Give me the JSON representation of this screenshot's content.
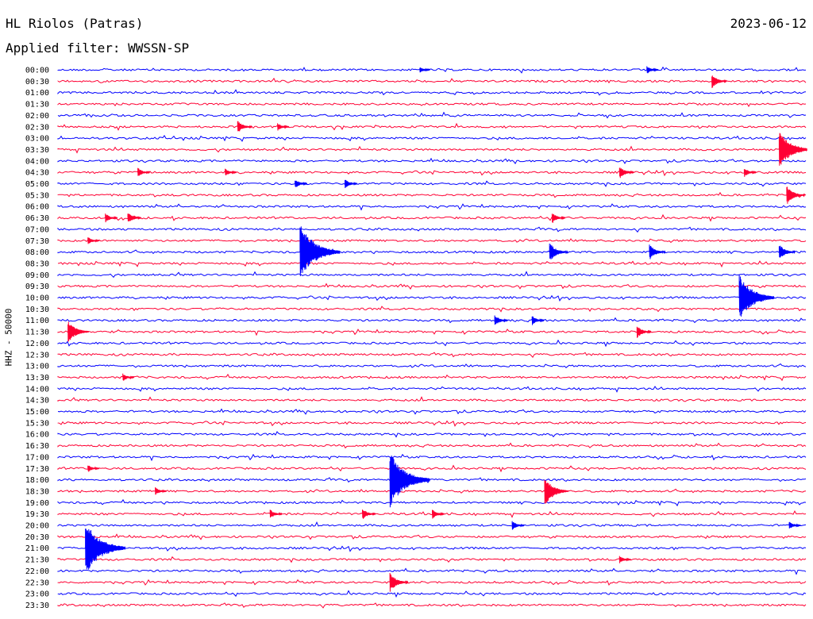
{
  "header": {
    "station": "HL Riolos (Patras)",
    "date": "2023-06-12",
    "filter": "Applied filter: WWSSN-SP",
    "channel": "HHZ - 50000"
  },
  "chart_data": {
    "type": "line",
    "title": "HL Riolos (Patras)",
    "subtitle": "Applied filter: WWSSN-SP",
    "ylabel": "HHZ - 50000",
    "xlabel": "",
    "grid": false,
    "series_colors": [
      "#0000ff",
      "#ff0033"
    ],
    "rows": [
      "00:00",
      "00:30",
      "01:00",
      "01:30",
      "02:00",
      "02:30",
      "03:00",
      "03:30",
      "04:00",
      "04:30",
      "05:00",
      "05:30",
      "06:00",
      "06:30",
      "07:00",
      "07:30",
      "08:00",
      "08:30",
      "09:00",
      "09:30",
      "10:00",
      "10:30",
      "11:00",
      "11:30",
      "12:00",
      "12:30",
      "13:00",
      "13:30",
      "14:00",
      "14:30",
      "15:00",
      "15:30",
      "16:00",
      "16:30",
      "17:00",
      "17:30",
      "18:00",
      "18:30",
      "19:00",
      "19:30",
      "20:00",
      "20:30",
      "21:00",
      "21:30",
      "22:00",
      "22:30",
      "23:00",
      "23:30"
    ],
    "events": [
      {
        "row": "00:00",
        "minute": 14.5,
        "amp": 0.4
      },
      {
        "row": "00:00",
        "minute": 23.6,
        "amp": 0.5
      },
      {
        "row": "00:30",
        "minute": 26.2,
        "amp": 0.9
      },
      {
        "row": "02:30",
        "minute": 7.2,
        "amp": 0.8
      },
      {
        "row": "02:30",
        "minute": 8.8,
        "amp": 0.5
      },
      {
        "row": "03:30",
        "minute": 28.9,
        "amp": 2.5
      },
      {
        "row": "04:30",
        "minute": 3.2,
        "amp": 0.6
      },
      {
        "row": "04:30",
        "minute": 6.7,
        "amp": 0.5
      },
      {
        "row": "04:30",
        "minute": 22.5,
        "amp": 0.8
      },
      {
        "row": "04:30",
        "minute": 27.5,
        "amp": 0.6
      },
      {
        "row": "05:00",
        "minute": 9.5,
        "amp": 0.6
      },
      {
        "row": "05:00",
        "minute": 11.5,
        "amp": 0.6
      },
      {
        "row": "05:30",
        "minute": 29.2,
        "amp": 1.2
      },
      {
        "row": "06:30",
        "minute": 1.9,
        "amp": 0.6
      },
      {
        "row": "06:30",
        "minute": 2.8,
        "amp": 0.7
      },
      {
        "row": "06:30",
        "minute": 19.8,
        "amp": 0.7
      },
      {
        "row": "07:30",
        "minute": 1.2,
        "amp": 0.5
      },
      {
        "row": "08:00",
        "minute": 9.7,
        "amp": 3.5
      },
      {
        "row": "08:00",
        "minute": 19.7,
        "amp": 1.2
      },
      {
        "row": "08:00",
        "minute": 23.7,
        "amp": 1.0
      },
      {
        "row": "08:00",
        "minute": 28.9,
        "amp": 1.0
      },
      {
        "row": "10:00",
        "minute": 27.3,
        "amp": 3.0
      },
      {
        "row": "11:30",
        "minute": 0.4,
        "amp": 1.5
      },
      {
        "row": "11:00",
        "minute": 17.5,
        "amp": 0.7
      },
      {
        "row": "11:00",
        "minute": 19.0,
        "amp": 0.6
      },
      {
        "row": "11:30",
        "minute": 23.2,
        "amp": 0.8
      },
      {
        "row": "13:30",
        "minute": 2.6,
        "amp": 0.5
      },
      {
        "row": "17:30",
        "minute": 1.2,
        "amp": 0.5
      },
      {
        "row": "18:00",
        "minute": 13.3,
        "amp": 3.5
      },
      {
        "row": "18:30",
        "minute": 3.9,
        "amp": 0.5
      },
      {
        "row": "18:30",
        "minute": 19.5,
        "amp": 1.8
      },
      {
        "row": "19:30",
        "minute": 8.5,
        "amp": 0.6
      },
      {
        "row": "19:30",
        "minute": 12.2,
        "amp": 0.7
      },
      {
        "row": "19:30",
        "minute": 15.0,
        "amp": 0.6
      },
      {
        "row": "20:00",
        "minute": 18.2,
        "amp": 0.6
      },
      {
        "row": "20:00",
        "minute": 29.3,
        "amp": 0.5
      },
      {
        "row": "21:00",
        "minute": 1.1,
        "amp": 3.5
      },
      {
        "row": "21:30",
        "minute": 22.5,
        "amp": 0.5
      },
      {
        "row": "22:30",
        "minute": 13.3,
        "amp": 1.2
      }
    ]
  }
}
